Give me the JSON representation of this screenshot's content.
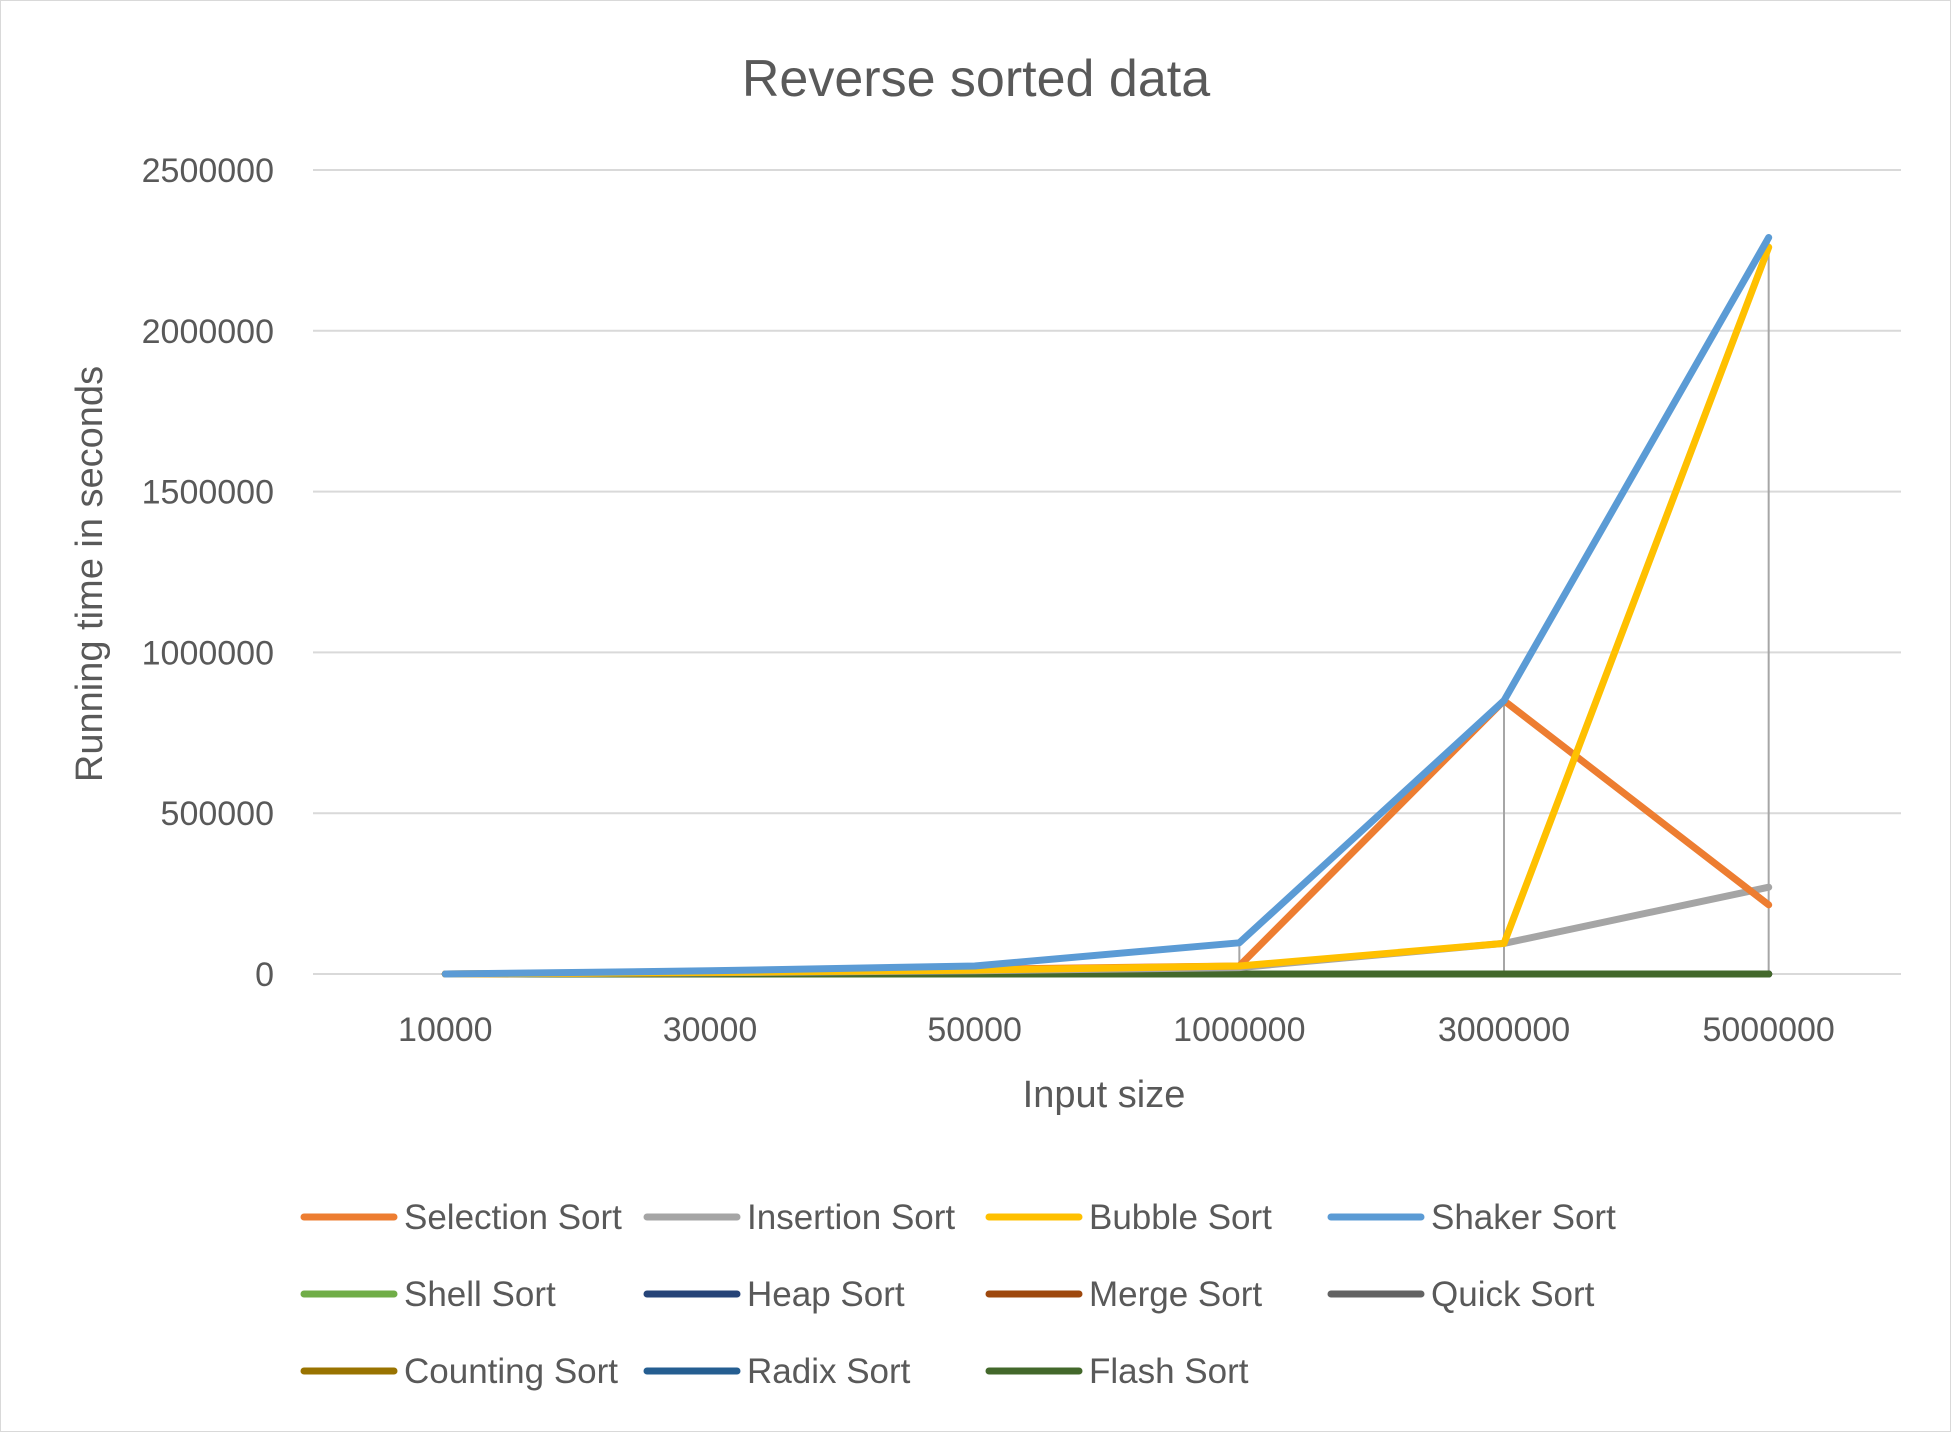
{
  "chart_data": {
    "type": "line",
    "title": "Reverse sorted data",
    "xlabel": "Input size",
    "ylabel": "Running time in seconds",
    "categories": [
      "10000",
      "30000",
      "50000",
      "1000000",
      "3000000",
      "5000000"
    ],
    "y_ticks": [
      "0",
      "500000",
      "1000000",
      "1500000",
      "2000000",
      "2500000"
    ],
    "ylim": [
      0,
      2500000
    ],
    "grid": "horizontal",
    "drop_lines": true,
    "legend_position": "bottom",
    "series": [
      {
        "name": "Selection Sort",
        "color": "#ED7D31",
        "values": [
          0,
          5000,
          15000,
          25000,
          850000,
          215000
        ]
      },
      {
        "name": "Insertion Sort",
        "color": "#A5A5A5",
        "values": [
          0,
          4000,
          10000,
          20000,
          95000,
          270000
        ]
      },
      {
        "name": "Bubble Sort",
        "color": "#FFC000",
        "values": [
          0,
          5000,
          12000,
          25000,
          95000,
          2260000
        ]
      },
      {
        "name": "Shaker Sort",
        "color": "#5B9BD5",
        "values": [
          0,
          10000,
          25000,
          97000,
          850000,
          2290000
        ]
      },
      {
        "name": "Shell Sort",
        "color": "#70AD47",
        "values": [
          0,
          0,
          0,
          0,
          0,
          0
        ]
      },
      {
        "name": "Heap Sort",
        "color": "#264478",
        "values": [
          0,
          0,
          0,
          0,
          0,
          0
        ]
      },
      {
        "name": "Merge Sort",
        "color": "#9E480E",
        "values": [
          0,
          0,
          0,
          0,
          0,
          0
        ]
      },
      {
        "name": "Quick Sort",
        "color": "#636363",
        "values": [
          0,
          0,
          0,
          0,
          0,
          0
        ]
      },
      {
        "name": "Counting Sort",
        "color": "#997300",
        "values": [
          0,
          0,
          0,
          0,
          0,
          0
        ]
      },
      {
        "name": "Radix Sort",
        "color": "#255E91",
        "values": [
          0,
          0,
          0,
          0,
          0,
          0
        ]
      },
      {
        "name": "Flash Sort",
        "color": "#43682B",
        "values": [
          0,
          0,
          0,
          0,
          0,
          0
        ]
      }
    ]
  }
}
